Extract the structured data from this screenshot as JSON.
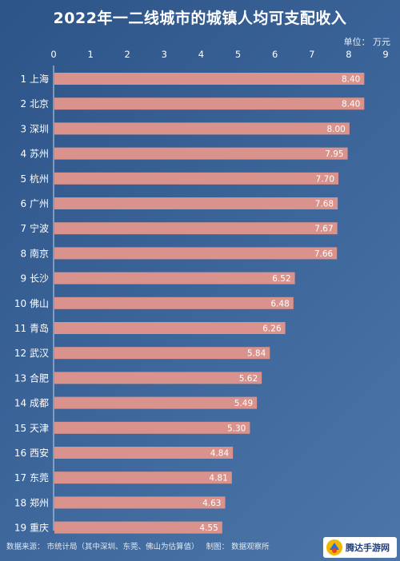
{
  "title": "2022年一二线城市的城镇人均可支配收入",
  "unit_label": "单位：  万元",
  "footer": {
    "source": "数据来源：  市统计局（其中深圳、东莞、佛山为估算值）",
    "credit": "制图：  数据观察所"
  },
  "watermark": {
    "text": "腾达手游网"
  },
  "colors": {
    "bar": "#d9938c",
    "label_box": "#d9938c"
  },
  "chart_data": {
    "type": "bar",
    "orientation": "horizontal",
    "title": "2022年一二线城市的城镇人均可支配收入",
    "unit": "万元",
    "xlim": [
      0,
      9
    ],
    "xticks": [
      "0",
      "1",
      "2",
      "3",
      "4",
      "5",
      "6",
      "7",
      "8",
      "9"
    ],
    "grid": false,
    "categories": [
      "1 上海",
      "2 北京",
      "3 深圳",
      "4 苏州",
      "5 杭州",
      "6 广州",
      "7 宁波",
      "8 南京",
      "9 长沙",
      "10 佛山",
      "11 青岛",
      "12 武汉",
      "13 合肥",
      "14 成都",
      "15 天津",
      "16 西安",
      "17 东莞",
      "18 郑州",
      "19 重庆"
    ],
    "values": [
      8.4,
      8.4,
      8.0,
      7.95,
      7.7,
      7.68,
      7.67,
      7.66,
      6.52,
      6.48,
      6.26,
      5.84,
      5.62,
      5.49,
      5.3,
      4.84,
      4.81,
      4.63,
      4.55
    ],
    "value_labels": [
      "8.40",
      "8.40",
      "8.00",
      "7.95",
      "7.70",
      "7.68",
      "7.67",
      "7.66",
      "6.52",
      "6.48",
      "6.26",
      "5.84",
      "5.62",
      "5.49",
      "5.30",
      "4.84",
      "4.81",
      "4.63",
      "4.55"
    ]
  }
}
